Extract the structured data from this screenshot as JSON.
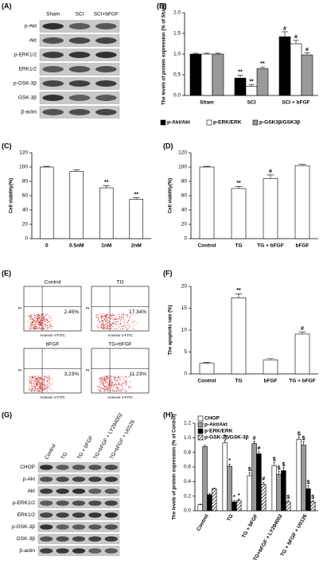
{
  "panels": {
    "A": {
      "label": "(A)",
      "columns": [
        "Sham",
        "SCI",
        "SCI+bFGF"
      ],
      "rows": [
        "p-Akt",
        "Akt",
        "p-ERK1/2",
        "ERK1/2",
        "p-GSK-3β",
        "GSK-3β",
        "β-actin"
      ]
    },
    "E": {
      "label": "(E)",
      "xlabel": "Annexin V-FITC",
      "ylabel": "PI",
      "plots": [
        {
          "title": "Control",
          "value": "2.45%"
        },
        {
          "title": "TG",
          "value": "17.34%"
        },
        {
          "title": "bFGF",
          "value": "3,23%"
        },
        {
          "title": "TG+bFGF",
          "value": "11.23%"
        }
      ]
    },
    "G": {
      "label": "(G)",
      "columns": [
        "Control",
        "TG",
        "TG + bFGF",
        "TG+bFGF + LY294002",
        "TG+bFGF + U0126"
      ],
      "rows": [
        "CHOP",
        "p-Akt",
        "Akt",
        "p-ERK1/2",
        "ERK1/2",
        "p-GSK-3β",
        "GSK-3β",
        "β-actin"
      ]
    }
  },
  "chart_data": [
    {
      "type": "bar",
      "label": "(B)",
      "ylabel": "The levels of protein expression (% of Sham)",
      "categories": [
        "Sham",
        "SCI",
        "SCI + bFGF"
      ],
      "ylim": [
        0,
        2
      ],
      "yticks": [
        {
          "value": 0,
          "label": "0.0"
        },
        {
          "value": 0.5,
          "label": "0.5"
        },
        {
          "value": 1,
          "label": "1.0"
        },
        {
          "value": 1.5,
          "label": "1.5"
        },
        {
          "value": 2,
          "label": "2.0"
        }
      ],
      "legend": "bottom",
      "series": [
        {
          "name": "p-Akt/Akt",
          "color": "#000000",
          "values": [
            1,
            0.42,
            1.42
          ],
          "errors": [
            0.02,
            0.07,
            0.12
          ],
          "significance": [
            null,
            "**",
            "#"
          ]
        },
        {
          "name": "p-ERK/ERK",
          "color": "#ffffff",
          "values": [
            1,
            0.22,
            1.25
          ],
          "errors": [
            0.02,
            0.04,
            0.08
          ],
          "significance": [
            null,
            "**",
            "#"
          ]
        },
        {
          "name": "p-GSK3β/GSK3β",
          "color": "#9a9a9a",
          "values": [
            1,
            0.65,
            0.98
          ],
          "errors": [
            0.02,
            0.04,
            0.05
          ],
          "significance": [
            null,
            "**",
            "#"
          ]
        }
      ]
    },
    {
      "type": "bar",
      "label": "(C)",
      "ylabel": "Cell viability(%)",
      "categories": [
        "0",
        "0.5nM",
        "1nM",
        "2nM"
      ],
      "ylim": [
        0,
        120
      ],
      "yticks": [
        0,
        20,
        40,
        60,
        80,
        100,
        120
      ],
      "series": [
        {
          "color": "#ffffff",
          "values": [
            100,
            94,
            71,
            55
          ],
          "errors": [
            1,
            2,
            3,
            2
          ],
          "significance": [
            null,
            null,
            "**",
            "**"
          ]
        }
      ]
    },
    {
      "type": "bar",
      "label": "(D)",
      "ylabel": "Cell viability(%)",
      "categories": [
        "Control",
        "TG",
        "TG + bFGF",
        "bFGF"
      ],
      "ylim": [
        0,
        120
      ],
      "yticks": [
        0,
        20,
        40,
        60,
        80,
        100,
        120
      ],
      "series": [
        {
          "color": "#ffffff",
          "values": [
            100,
            70,
            84,
            102
          ],
          "errors": [
            1,
            3,
            5,
            2
          ],
          "significance": [
            null,
            "**",
            "#",
            null
          ]
        }
      ]
    },
    {
      "type": "bar",
      "label": "(F)",
      "ylabel": "The apoptotic rate (%)",
      "categories": [
        "Control",
        "TG",
        "bFGF",
        "TG + bFGF"
      ],
      "ylim": [
        0,
        20
      ],
      "yticks": [
        0,
        5,
        10,
        15,
        20
      ],
      "series": [
        {
          "color": "#ffffff",
          "values": [
            2.4,
            17.4,
            3.2,
            9.1
          ],
          "errors": [
            0.2,
            0.9,
            0.3,
            0.5
          ],
          "significance": [
            null,
            "**",
            null,
            "#"
          ]
        }
      ]
    },
    {
      "type": "bar",
      "label": "(H)",
      "ylabel": "The levels of protein expression (% of Control)",
      "categories": [
        "Control",
        "TG",
        "TG + bFGF",
        "TG+bFGF + LY294002",
        "TG + bFGF + U0126"
      ],
      "ylim": [
        0,
        1.2
      ],
      "yticks": [
        {
          "value": 0,
          "label": "0.0"
        },
        {
          "value": 0.2,
          "label": "0.2"
        },
        {
          "value": 0.4,
          "label": "0.4"
        },
        {
          "value": 0.6,
          "label": "0.6"
        },
        {
          "value": 0.8,
          "label": "0.8"
        },
        {
          "value": 1,
          "label": "1.0"
        },
        {
          "value": 1.2,
          "label": "1.2"
        }
      ],
      "legend": "upper left",
      "series": [
        {
          "name": "CHOP",
          "color": "#ffffff",
          "values": [
            0.08,
            0.93,
            0.48,
            0.62,
            0.98
          ],
          "errors": [
            0.01,
            0.04,
            0.04,
            0.04,
            0.03
          ],
          "significance": [
            null,
            "*",
            "$",
            "$",
            "$"
          ]
        },
        {
          "name": "p-Akt/Akt",
          "color": "#9a9a9a",
          "values": [
            0.88,
            0.61,
            0.92,
            0.5,
            0.9
          ],
          "errors": [
            0.02,
            0.03,
            0.03,
            0.04,
            0.05
          ],
          "significance": [
            null,
            "*",
            "#",
            "$",
            "$"
          ]
        },
        {
          "name": "p-ERK/ERK",
          "color": "#000000",
          "values": [
            0.22,
            0.12,
            0.78,
            0.55,
            0.3
          ],
          "errors": [
            0.02,
            0.02,
            0.03,
            0.04,
            0.04
          ],
          "significance": [
            null,
            "*",
            "#",
            "$",
            "$"
          ]
        },
        {
          "name": "p-GSK-3β/GSK-3β",
          "color": "#ffffff",
          "pattern": "hatch",
          "values": [
            0.3,
            0.14,
            0.36,
            0.12,
            0.12
          ],
          "errors": [
            0.01,
            0.02,
            0.03,
            0.02,
            0.02
          ],
          "significance": [
            null,
            "*",
            "#",
            "$",
            "$"
          ]
        }
      ]
    }
  ]
}
